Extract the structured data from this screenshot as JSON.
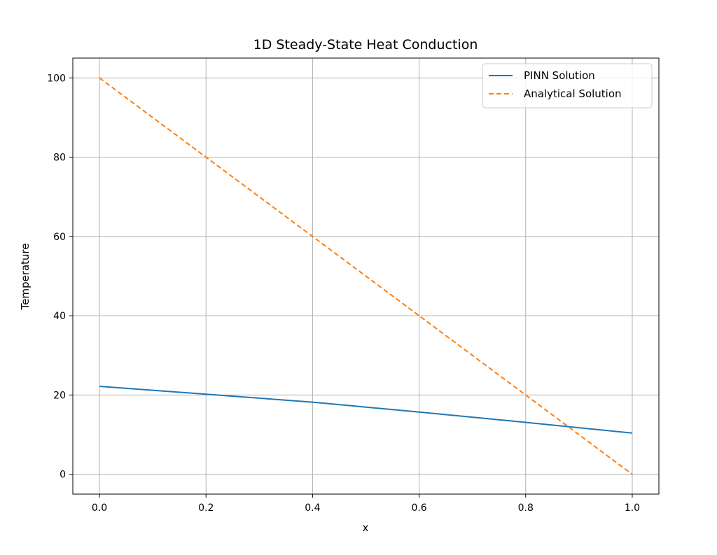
{
  "chart_data": {
    "type": "line",
    "title": "1D Steady-State Heat Conduction",
    "xlabel": "x",
    "ylabel": "Temperature",
    "xlim": [
      -0.05,
      1.05
    ],
    "ylim": [
      -5,
      105
    ],
    "xticks": [
      0.0,
      0.2,
      0.4,
      0.6,
      0.8,
      1.0
    ],
    "xtick_labels": [
      "0.0",
      "0.2",
      "0.4",
      "0.6",
      "0.8",
      "1.0"
    ],
    "yticks": [
      0,
      20,
      40,
      60,
      80,
      100
    ],
    "ytick_labels": [
      "0",
      "20",
      "40",
      "60",
      "80",
      "100"
    ],
    "grid": true,
    "legend_position": "top-right",
    "x": [
      0.0,
      0.2,
      0.4,
      0.6,
      0.8,
      1.0
    ],
    "series": [
      {
        "name": "PINN Solution",
        "color": "#1f77b4",
        "style": "solid",
        "values": [
          22.2,
          20.2,
          18.2,
          15.7,
          13.1,
          10.4
        ]
      },
      {
        "name": "Analytical Solution",
        "color": "#ff7f0e",
        "style": "dashed",
        "values": [
          100,
          80,
          60,
          40,
          20,
          0
        ]
      }
    ]
  }
}
